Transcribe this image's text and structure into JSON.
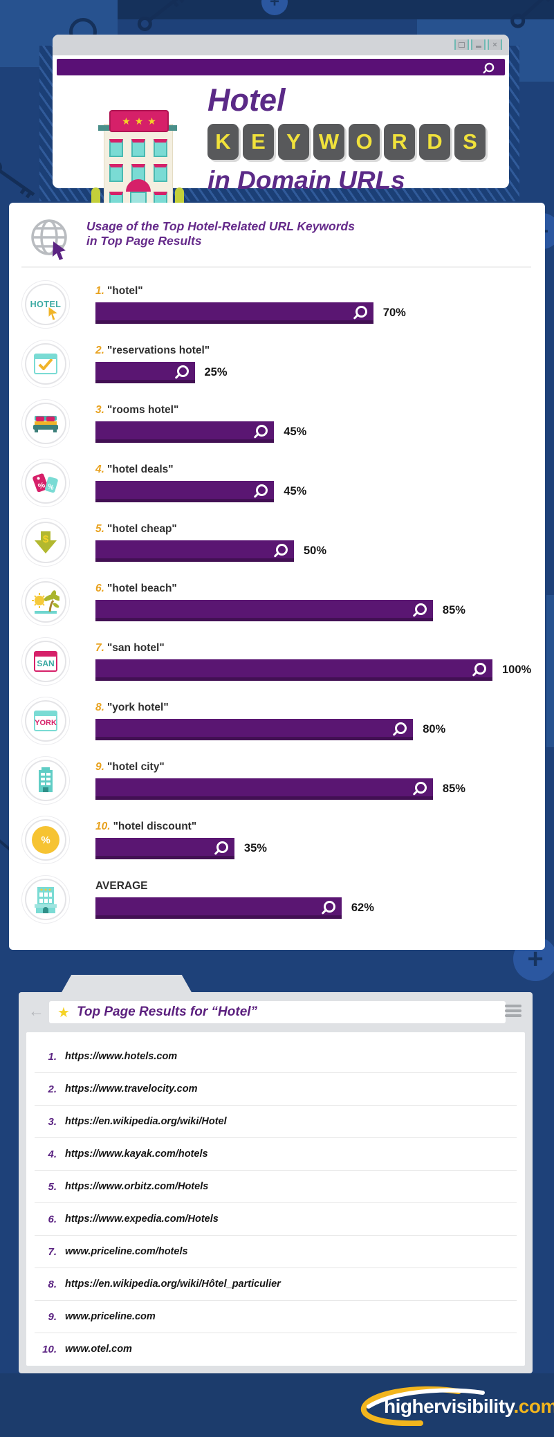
{
  "header": {
    "window_controls": [
      "restore",
      "minimize",
      "close"
    ],
    "title_line1": "Hotel",
    "keyword_tiles": [
      "K",
      "E",
      "Y",
      "W",
      "O",
      "R",
      "D",
      "S"
    ],
    "title_line3": "in Domain URLs"
  },
  "chart_panel": {
    "heading_line1": "Usage of the Top Hotel-Related URL Keywords",
    "heading_line2": "in Top Page Results"
  },
  "chart_data": {
    "type": "bar",
    "orientation": "horizontal",
    "title": "Usage of the Top Hotel-Related URL Keywords in Top Page Results",
    "unit": "%",
    "xlim": [
      0,
      100
    ],
    "categories": [
      "hotel",
      "reservations hotel",
      "rooms hotel",
      "hotel deals",
      "hotel cheap",
      "hotel beach",
      "san hotel",
      "york hotel",
      "hotel city",
      "hotel discount",
      "AVERAGE"
    ],
    "values": [
      70,
      25,
      45,
      45,
      50,
      85,
      100,
      80,
      85,
      35,
      62
    ],
    "bar_color": "#5a1672",
    "rows": [
      {
        "rank": "1.",
        "label": "\"hotel\"",
        "value": 70,
        "value_label": "70%",
        "icon": "hotel-cursor"
      },
      {
        "rank": "2.",
        "label": "\"reservations hotel\"",
        "value": 25,
        "value_label": "25%",
        "icon": "check-window"
      },
      {
        "rank": "3.",
        "label": "\"rooms hotel\"",
        "value": 45,
        "value_label": "45%",
        "icon": "bed"
      },
      {
        "rank": "4.",
        "label": "\"hotel deals\"",
        "value": 45,
        "value_label": "45%",
        "icon": "price-tags"
      },
      {
        "rank": "5.",
        "label": "\"hotel cheap\"",
        "value": 50,
        "value_label": "50%",
        "icon": "down-arrow-dollar"
      },
      {
        "rank": "6.",
        "label": "\"hotel beach\"",
        "value": 85,
        "value_label": "85%",
        "icon": "beach-palm"
      },
      {
        "rank": "7.",
        "label": "\"san hotel\"",
        "value": 100,
        "value_label": "100%",
        "icon": "san-window"
      },
      {
        "rank": "8.",
        "label": "\"york hotel\"",
        "value": 80,
        "value_label": "80%",
        "icon": "york-window"
      },
      {
        "rank": "9.",
        "label": "\"hotel city\"",
        "value": 85,
        "value_label": "85%",
        "icon": "city-building"
      },
      {
        "rank": "10.",
        "label": "\"hotel discount\"",
        "value": 35,
        "value_label": "35%",
        "icon": "percent-badge"
      },
      {
        "rank": "",
        "label": "AVERAGE",
        "value": 62,
        "value_label": "62%",
        "icon": "hotel-building"
      }
    ]
  },
  "results_panel": {
    "title": "Top Page Results for “Hotel”",
    "items": [
      {
        "rank": "1.",
        "url": "https://www.hotels.com"
      },
      {
        "rank": "2.",
        "url": "https://www.travelocity.com"
      },
      {
        "rank": "3.",
        "url": "https://en.wikipedia.org/wiki/Hotel"
      },
      {
        "rank": "4.",
        "url": "https://www.kayak.com/hotels"
      },
      {
        "rank": "5.",
        "url": "https://www.orbitz.com/Hotels"
      },
      {
        "rank": "6.",
        "url": "https://www.expedia.com/Hotels"
      },
      {
        "rank": "7.",
        "url": "www.priceline.com/hotels"
      },
      {
        "rank": "8.",
        "url": "https://en.wikipedia.org/wiki/Hôtel_particulier"
      },
      {
        "rank": "9.",
        "url": "www.priceline.com"
      },
      {
        "rank": "10.",
        "url": "www.otel.com"
      }
    ]
  },
  "footer": {
    "brand_white": "highervisibility",
    "brand_accent": ".com"
  },
  "colors": {
    "background_navy": "#1e4179",
    "dark_navy": "#15315b",
    "light_blue_block": "#27528f",
    "purple_main": "#5a1672",
    "purple_dark_edge": "#421053",
    "purple_heading": "#652a8a",
    "gold_rank": "#e8a21f",
    "tile_letter_yellow": "#f1e23b",
    "teal": "#49b9b1",
    "pink": "#d62069",
    "brand_gold": "#f2b51d"
  }
}
